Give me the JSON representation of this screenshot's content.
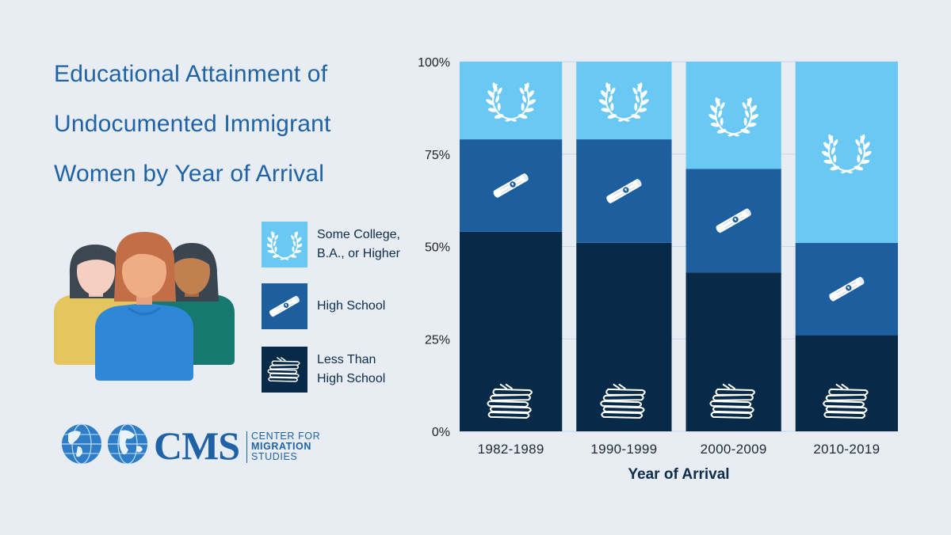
{
  "title_lines": [
    "Educational Attainment of",
    "Undocumented Immigrant",
    "Women by Year of Arrival"
  ],
  "legend": [
    {
      "label_lines": [
        "Some College,",
        "B.A., or Higher"
      ],
      "icon": "laurel-icon",
      "color": "#69c9f4"
    },
    {
      "label_lines": [
        "High School"
      ],
      "icon": "diploma-icon",
      "color": "#1d5e9e"
    },
    {
      "label_lines": [
        "Less Than",
        "High School"
      ],
      "icon": "books-icon",
      "color": "#062a47"
    }
  ],
  "logo": {
    "mark": "CMS",
    "line1": "CENTER FOR",
    "line2": "MIGRATION",
    "line3": "STUDIES"
  },
  "colors": {
    "college": "#69c9f4",
    "high_school": "#1d5e9e",
    "less": "#062a47",
    "background": "#e8edf3",
    "title": "#1f63a6"
  },
  "chart_data": {
    "type": "bar",
    "stacked": true,
    "categories": [
      "1982-1989",
      "1990-1999",
      "2000-2009",
      "2010-2019"
    ],
    "series": [
      {
        "name": "Less Than High School",
        "values": [
          54,
          51,
          43,
          26
        ]
      },
      {
        "name": "High School",
        "values": [
          25,
          28,
          28,
          25
        ]
      },
      {
        "name": "Some College, B.A., or Higher",
        "values": [
          21,
          21,
          29,
          49
        ]
      }
    ],
    "xlabel": "Year of Arrival",
    "ylabel": "",
    "ylim": [
      0,
      100
    ],
    "yticks": [
      "0%",
      "25%",
      "50%",
      "75%",
      "100%"
    ],
    "ytick_values": [
      0,
      25,
      50,
      75,
      100
    ],
    "grid": true,
    "legend_position": "left"
  }
}
